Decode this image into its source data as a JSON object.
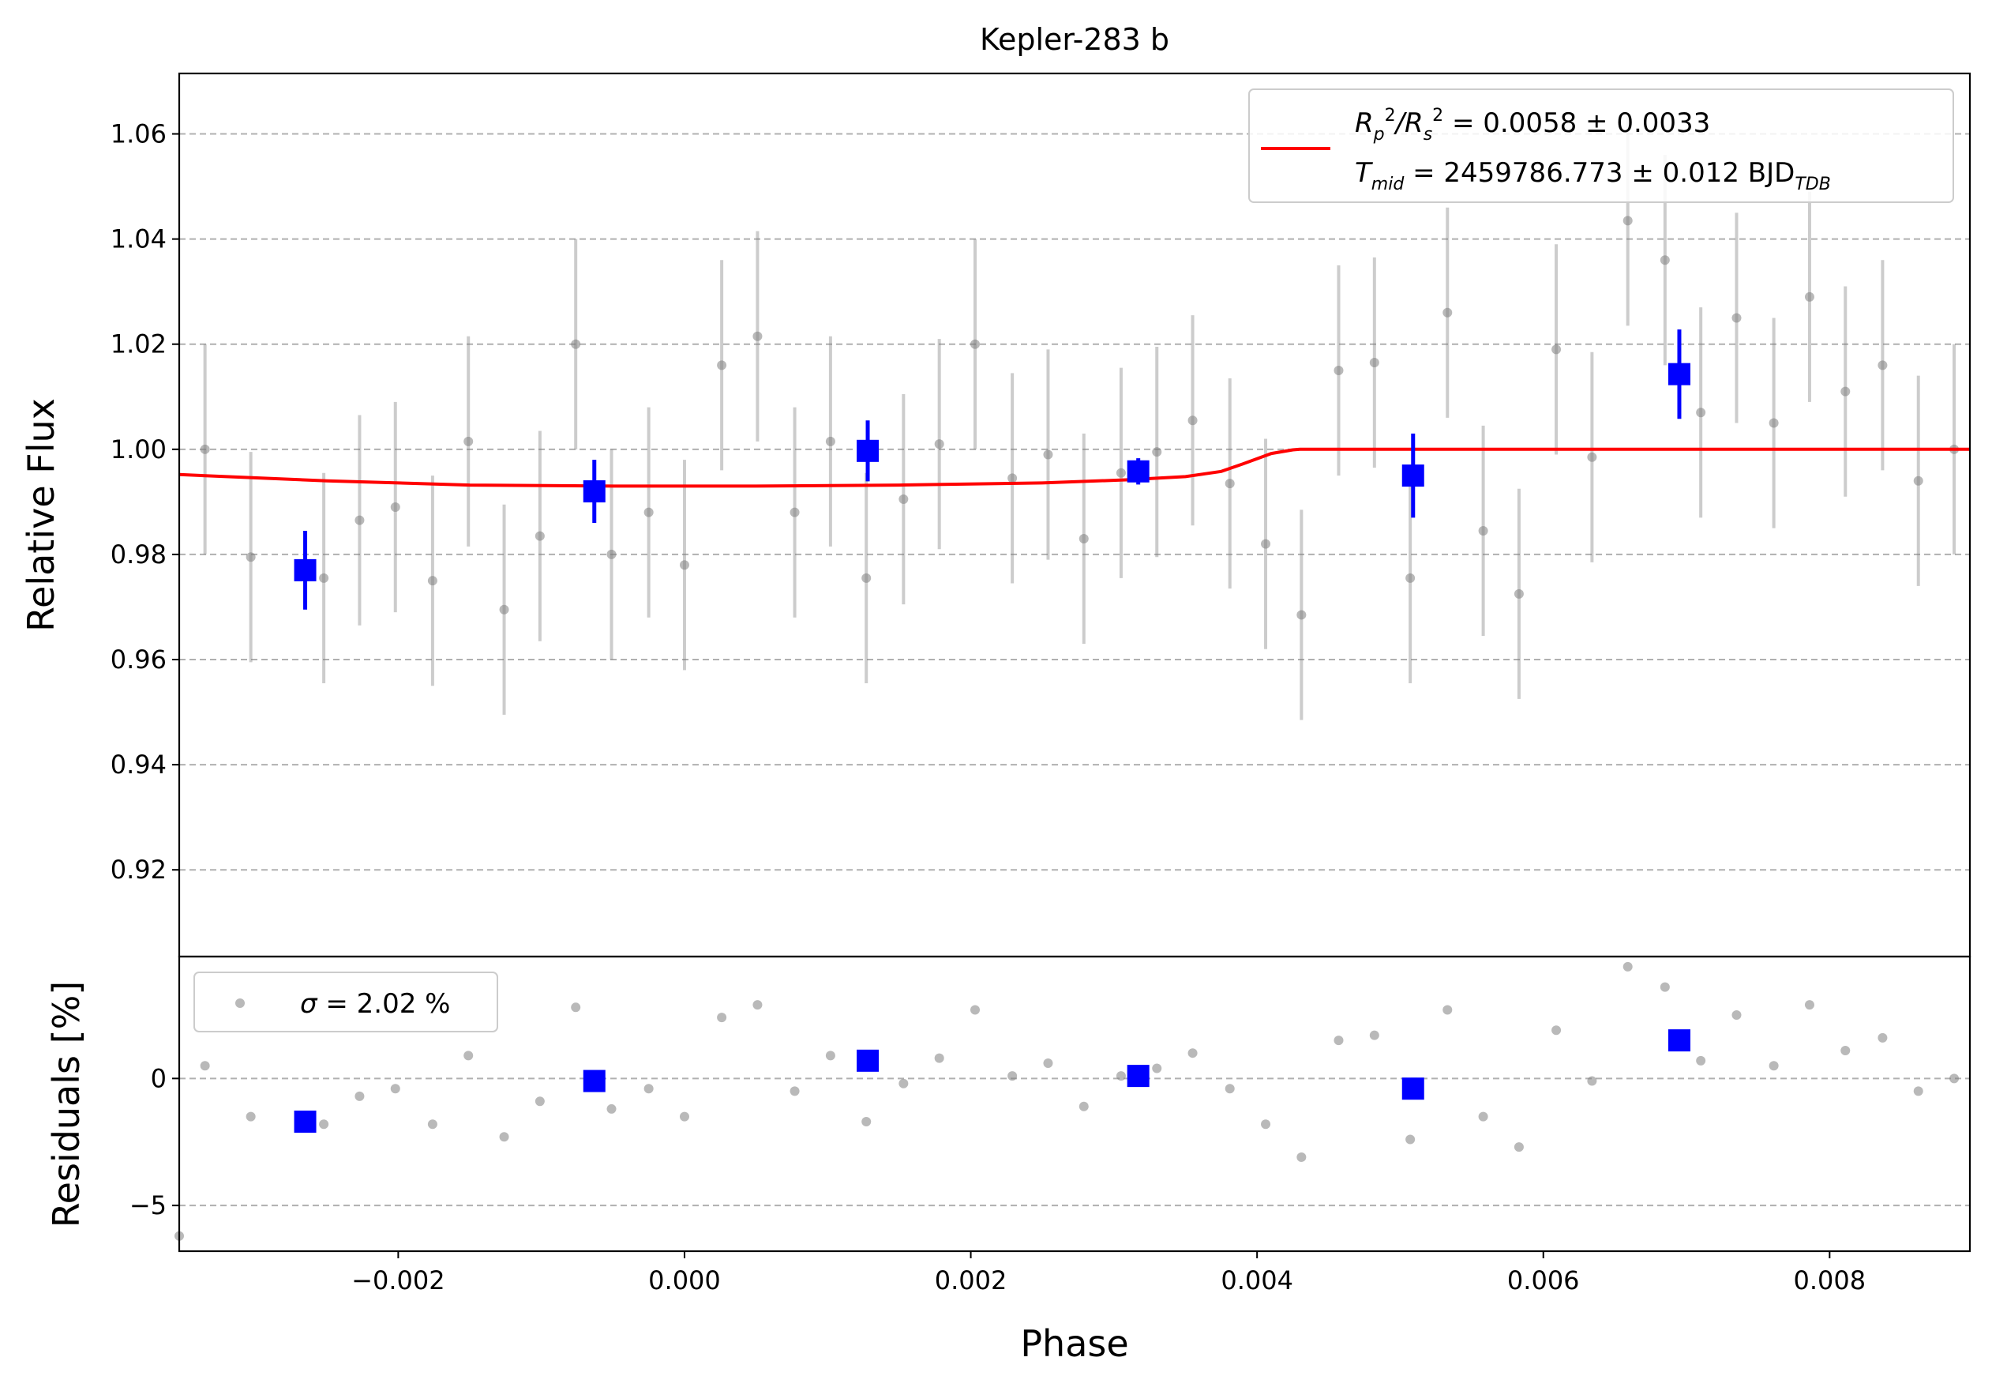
{
  "chart_data": [
    {
      "type": "scatter",
      "title": "Kepler-283 b",
      "xlabel": "",
      "ylabel": "Relative Flux",
      "xlim": [
        -0.00353,
        0.00898
      ],
      "ylim": [
        0.9035,
        1.0715
      ],
      "grid": "horizontal dashed",
      "legend_position": "top-right",
      "yticks": [
        0.92,
        0.94,
        0.96,
        0.98,
        1.0,
        1.02,
        1.04,
        1.06
      ],
      "ytick_labels": [
        "0.92",
        "0.94",
        "0.96",
        "0.98",
        "1.00",
        "1.02",
        "1.04",
        "1.06"
      ],
      "legend": {
        "line1_pre": "R",
        "line1_sub1": "p",
        "line1_sup1": "2",
        "line1_mid": "/R",
        "line1_sub2": "s",
        "line1_sup2": "2",
        "line1_post": " = 0.0058 ± 0.0033",
        "line2_pre": "T",
        "line2_sub1": "mid",
        "line2_post": " = 2459786.773 ± 0.012 BJD",
        "line2_sub2": "TDB"
      },
      "series": [
        {
          "kind": "data-errorbar",
          "color": "#808080",
          "error": 0.02,
          "x": [
            -0.00335,
            -0.00303,
            -0.00252,
            -0.00227,
            -0.00202,
            -0.00176,
            -0.00151,
            -0.00126,
            -0.00101,
            -0.00076,
            -0.00051,
            -0.00025,
            0.0,
            0.00026,
            0.00051,
            0.00077,
            0.00102,
            0.00127,
            0.00153,
            0.00178,
            0.00203,
            0.00229,
            0.00254,
            0.00279,
            0.00305,
            0.0033,
            0.00355,
            0.00381,
            0.00406,
            0.00431,
            0.00457,
            0.00482,
            0.00507,
            0.00533,
            0.00558,
            0.00583,
            0.00609,
            0.00634,
            0.00659,
            0.00685,
            0.0071,
            0.00735,
            0.00761,
            0.00786,
            0.00811,
            0.00837,
            0.00862,
            0.00887
          ],
          "y": [
            1.0,
            0.9795,
            0.9755,
            0.9865,
            0.989,
            0.975,
            1.0015,
            0.9695,
            0.9835,
            1.02,
            0.98,
            0.988,
            0.978,
            1.016,
            1.0215,
            0.988,
            1.0015,
            0.9755,
            0.9905,
            1.001,
            1.02,
            0.9945,
            0.999,
            0.983,
            0.9955,
            0.9995,
            1.0055,
            0.9935,
            0.982,
            0.9685,
            1.015,
            1.0165,
            0.9755,
            1.026,
            0.9845,
            0.9725,
            1.019,
            0.9985,
            1.0435,
            1.036,
            1.007,
            1.025,
            1.005,
            1.029,
            1.011,
            1.016,
            0.994,
            1.0
          ]
        },
        {
          "kind": "binned",
          "color": "#0000ff",
          "x": [
            -0.00265,
            -0.00063,
            0.00128,
            0.00317,
            0.00509,
            0.00695
          ],
          "y": [
            0.977,
            0.992,
            0.9997,
            0.9958,
            0.995,
            1.0143
          ],
          "error": [
            0.0075,
            0.006,
            0.0058,
            0.0025,
            0.008,
            0.0085
          ]
        },
        {
          "kind": "model",
          "color": "#ff0000",
          "x": [
            -0.00353,
            -0.0025,
            -0.0015,
            -0.0005,
            0.0005,
            0.0015,
            0.0025,
            0.0031,
            0.0035,
            0.00375,
            0.0039,
            0.0041,
            0.00425,
            0.0043,
            0.00898
          ],
          "y": [
            0.9952,
            0.994,
            0.9932,
            0.993,
            0.993,
            0.9932,
            0.9936,
            0.9942,
            0.9948,
            0.9958,
            0.9972,
            0.9992,
            0.9999,
            1.0,
            1.0
          ]
        }
      ]
    },
    {
      "type": "scatter",
      "title": "",
      "xlabel": "Phase",
      "ylabel": "Residuals [%]",
      "xlim": [
        -0.00353,
        0.00898
      ],
      "ylim": [
        -6.8,
        4.8
      ],
      "grid": "horizontal dashed",
      "legend_position": "top-left",
      "xticks": [
        -0.002,
        0.0,
        0.002,
        0.004,
        0.006,
        0.008
      ],
      "xtick_labels": [
        "−0.002",
        "0.000",
        "0.002",
        "0.004",
        "0.006",
        "0.008"
      ],
      "yticks": [
        -5,
        0
      ],
      "ytick_labels": [
        "−5",
        "0"
      ],
      "legend": {
        "sigma_symbol": "σ",
        "sigma_text": " = 2.02 %"
      },
      "series": [
        {
          "kind": "residuals",
          "color": "#808080",
          "x": [
            -0.00353,
            -0.00335,
            -0.00303,
            -0.00252,
            -0.00227,
            -0.00202,
            -0.00176,
            -0.00151,
            -0.00126,
            -0.00101,
            -0.00076,
            -0.00051,
            -0.00025,
            0.0,
            0.00026,
            0.00051,
            0.00077,
            0.00102,
            0.00127,
            0.00153,
            0.00178,
            0.00203,
            0.00229,
            0.00254,
            0.00279,
            0.00305,
            0.0033,
            0.00355,
            0.00381,
            0.00406,
            0.00431,
            0.00457,
            0.00482,
            0.00507,
            0.00533,
            0.00558,
            0.00583,
            0.00609,
            0.00634,
            0.00659,
            0.00685,
            0.0071,
            0.00735,
            0.00761,
            0.00786,
            0.00811,
            0.00837,
            0.00862,
            0.00887
          ],
          "y": [
            -6.2,
            0.5,
            -1.5,
            -1.8,
            -0.7,
            -0.4,
            -1.8,
            0.9,
            -2.3,
            -0.9,
            2.8,
            -1.2,
            -0.4,
            -1.5,
            2.4,
            2.9,
            -0.5,
            0.9,
            -1.7,
            -0.2,
            0.8,
            2.7,
            0.1,
            0.6,
            -1.1,
            0.1,
            0.4,
            1.0,
            -0.4,
            -1.8,
            -3.1,
            1.5,
            1.7,
            -2.4,
            2.7,
            -1.5,
            -2.7,
            1.9,
            -0.1,
            4.4,
            3.6,
            0.7,
            2.5,
            0.5,
            2.9,
            1.1,
            1.6,
            -0.5,
            0.0
          ]
        },
        {
          "kind": "binned",
          "color": "#0000ff",
          "x": [
            -0.00265,
            -0.00063,
            0.00128,
            0.00317,
            0.00509,
            0.00695
          ],
          "y": [
            -1.7,
            -0.1,
            0.7,
            0.1,
            -0.4,
            1.5
          ]
        }
      ]
    }
  ]
}
